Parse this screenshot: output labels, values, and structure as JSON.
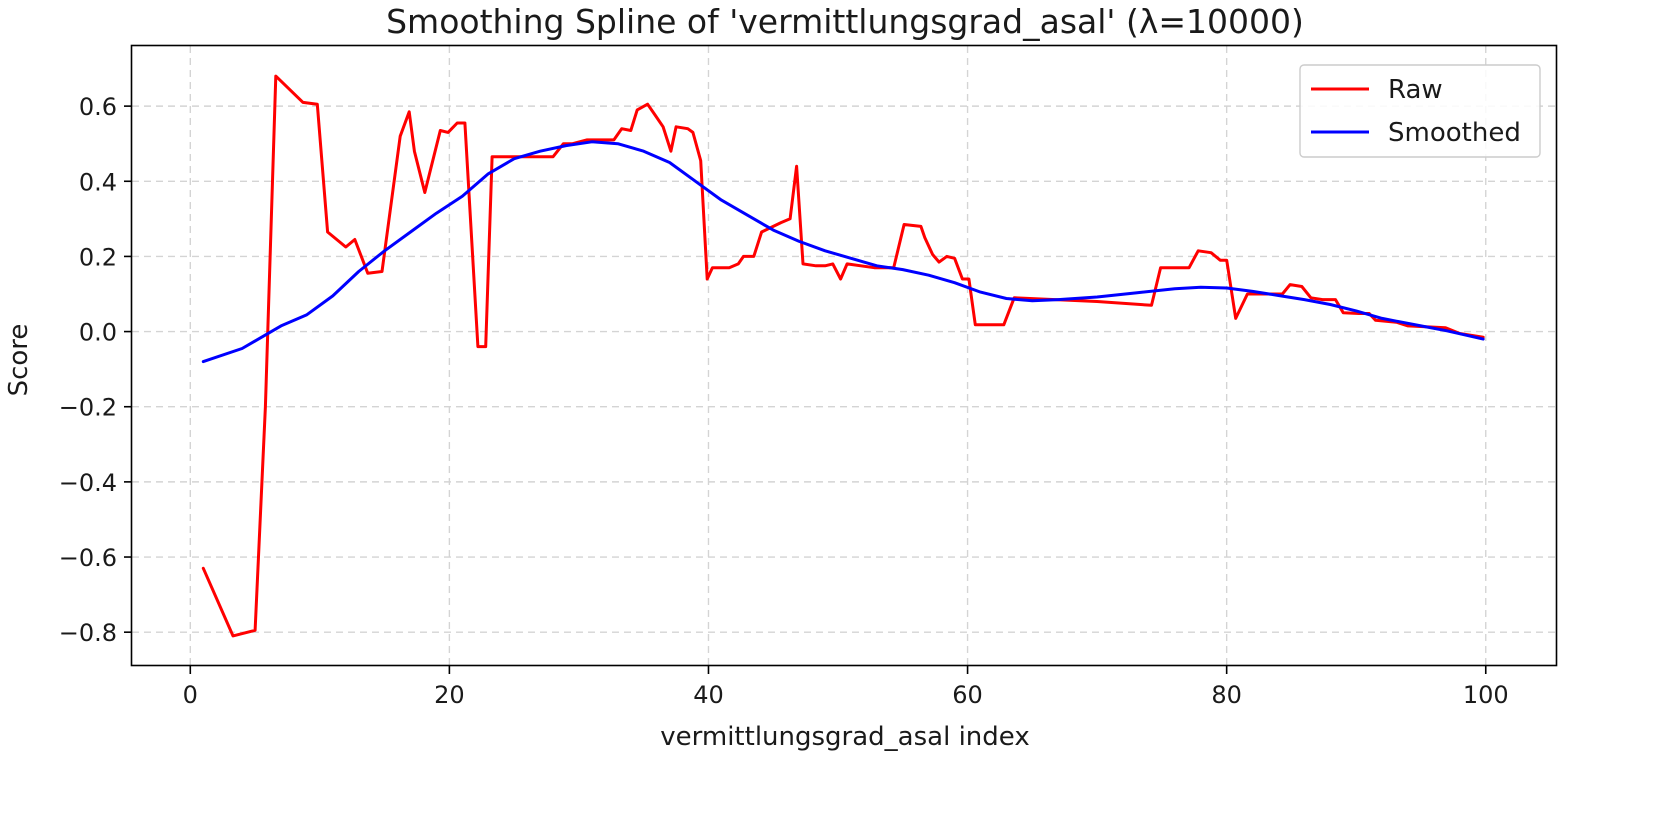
{
  "chart_data": {
    "type": "line",
    "title": "Smoothing Spline of 'vermittlungsgrad_asal' (λ=10000)",
    "xlabel": "vermittlungsgrad_asal index",
    "ylabel": "Score",
    "xlim": [
      -4.5,
      105.5
    ],
    "ylim": [
      -0.89,
      0.76
    ],
    "xticks": [
      0,
      20,
      40,
      60,
      80,
      100
    ],
    "yticks": [
      -0.8,
      -0.6,
      -0.4,
      -0.2,
      0.0,
      0.2,
      0.4,
      0.6
    ],
    "xtick_labels": [
      "0",
      "20",
      "40",
      "60",
      "80",
      "100"
    ],
    "ytick_labels": [
      "−0.8",
      "−0.6",
      "−0.4",
      "−0.2",
      "0.0",
      "0.2",
      "0.4",
      "0.6"
    ],
    "grid": true,
    "legend_position": "top-right",
    "series": [
      {
        "name": "Raw",
        "color": "#ff0000",
        "points": [
          [
            1,
            -0.63
          ],
          [
            3.3,
            -0.81
          ],
          [
            5,
            -0.795
          ],
          [
            5.8,
            -0.2
          ],
          [
            6.6,
            0.68
          ],
          [
            8.7,
            0.61
          ],
          [
            9.8,
            0.605
          ],
          [
            10.6,
            0.265
          ],
          [
            12,
            0.225
          ],
          [
            12.7,
            0.245
          ],
          [
            13.7,
            0.155
          ],
          [
            14.8,
            0.16
          ],
          [
            16.2,
            0.52
          ],
          [
            16.9,
            0.585
          ],
          [
            17.3,
            0.48
          ],
          [
            18.1,
            0.37
          ],
          [
            19.3,
            0.535
          ],
          [
            19.9,
            0.53
          ],
          [
            20.6,
            0.555
          ],
          [
            21.2,
            0.555
          ],
          [
            22.2,
            -0.04
          ],
          [
            22.8,
            -0.04
          ],
          [
            23.3,
            0.465
          ],
          [
            26.6,
            0.465
          ],
          [
            28,
            0.465
          ],
          [
            28.8,
            0.5
          ],
          [
            29.5,
            0.5
          ],
          [
            30.6,
            0.51
          ],
          [
            32.7,
            0.51
          ],
          [
            33.3,
            0.54
          ],
          [
            34,
            0.535
          ],
          [
            34.5,
            0.59
          ],
          [
            35.3,
            0.605
          ],
          [
            35.9,
            0.575
          ],
          [
            36.5,
            0.545
          ],
          [
            37.1,
            0.48
          ],
          [
            37.5,
            0.545
          ],
          [
            38.4,
            0.54
          ],
          [
            38.8,
            0.53
          ],
          [
            39.4,
            0.455
          ],
          [
            39.9,
            0.14
          ],
          [
            40.3,
            0.17
          ],
          [
            41.6,
            0.17
          ],
          [
            42.3,
            0.18
          ],
          [
            42.7,
            0.2
          ],
          [
            43.5,
            0.2
          ],
          [
            44.1,
            0.265
          ],
          [
            45.6,
            0.29
          ],
          [
            46.3,
            0.3
          ],
          [
            46.8,
            0.44
          ],
          [
            47.3,
            0.18
          ],
          [
            48.3,
            0.175
          ],
          [
            49,
            0.175
          ],
          [
            49.6,
            0.18
          ],
          [
            50.2,
            0.14
          ],
          [
            50.7,
            0.18
          ],
          [
            52.8,
            0.17
          ],
          [
            54.3,
            0.17
          ],
          [
            55.1,
            0.285
          ],
          [
            56.4,
            0.28
          ],
          [
            56.7,
            0.25
          ],
          [
            57.3,
            0.205
          ],
          [
            57.8,
            0.185
          ],
          [
            58.4,
            0.2
          ],
          [
            59,
            0.195
          ],
          [
            59.6,
            0.14
          ],
          [
            60.1,
            0.14
          ],
          [
            60.6,
            0.018
          ],
          [
            62.8,
            0.018
          ],
          [
            63.6,
            0.09
          ],
          [
            70,
            0.08
          ],
          [
            74.2,
            0.07
          ],
          [
            74.9,
            0.17
          ],
          [
            76.3,
            0.17
          ],
          [
            77.1,
            0.17
          ],
          [
            77.8,
            0.215
          ],
          [
            78.8,
            0.21
          ],
          [
            79.5,
            0.19
          ],
          [
            80,
            0.19
          ],
          [
            80.7,
            0.035
          ],
          [
            81.6,
            0.1
          ],
          [
            84.3,
            0.1
          ],
          [
            84.9,
            0.125
          ],
          [
            85.8,
            0.12
          ],
          [
            86.5,
            0.09
          ],
          [
            87.4,
            0.085
          ],
          [
            88.4,
            0.085
          ],
          [
            89,
            0.05
          ],
          [
            90.2,
            0.048
          ],
          [
            91,
            0.048
          ],
          [
            91.5,
            0.03
          ],
          [
            93.1,
            0.025
          ],
          [
            94,
            0.015
          ],
          [
            96.9,
            0.01
          ],
          [
            98,
            -0.005
          ],
          [
            99.8,
            -0.015
          ]
        ]
      },
      {
        "name": "Smoothed",
        "color": "#0000ff",
        "points": [
          [
            1,
            -0.08
          ],
          [
            4,
            -0.045
          ],
          [
            7,
            0.015
          ],
          [
            9,
            0.045
          ],
          [
            11,
            0.095
          ],
          [
            13,
            0.16
          ],
          [
            15,
            0.215
          ],
          [
            17,
            0.265
          ],
          [
            19,
            0.315
          ],
          [
            21,
            0.36
          ],
          [
            23,
            0.42
          ],
          [
            25,
            0.46
          ],
          [
            27,
            0.48
          ],
          [
            29,
            0.495
          ],
          [
            31,
            0.505
          ],
          [
            33,
            0.5
          ],
          [
            35,
            0.48
          ],
          [
            37,
            0.45
          ],
          [
            39,
            0.4
          ],
          [
            41,
            0.35
          ],
          [
            43,
            0.31
          ],
          [
            45,
            0.27
          ],
          [
            47,
            0.24
          ],
          [
            49,
            0.215
          ],
          [
            51,
            0.195
          ],
          [
            53,
            0.175
          ],
          [
            55,
            0.165
          ],
          [
            57,
            0.15
          ],
          [
            59,
            0.13
          ],
          [
            61,
            0.105
          ],
          [
            63,
            0.088
          ],
          [
            65,
            0.082
          ],
          [
            67,
            0.085
          ],
          [
            70,
            0.092
          ],
          [
            73,
            0.103
          ],
          [
            76,
            0.114
          ],
          [
            78,
            0.118
          ],
          [
            80,
            0.116
          ],
          [
            82,
            0.107
          ],
          [
            84,
            0.096
          ],
          [
            86,
            0.085
          ],
          [
            88,
            0.072
          ],
          [
            90,
            0.055
          ],
          [
            92,
            0.035
          ],
          [
            95,
            0.015
          ],
          [
            97,
            0.002
          ],
          [
            99.8,
            -0.02
          ]
        ]
      }
    ]
  }
}
